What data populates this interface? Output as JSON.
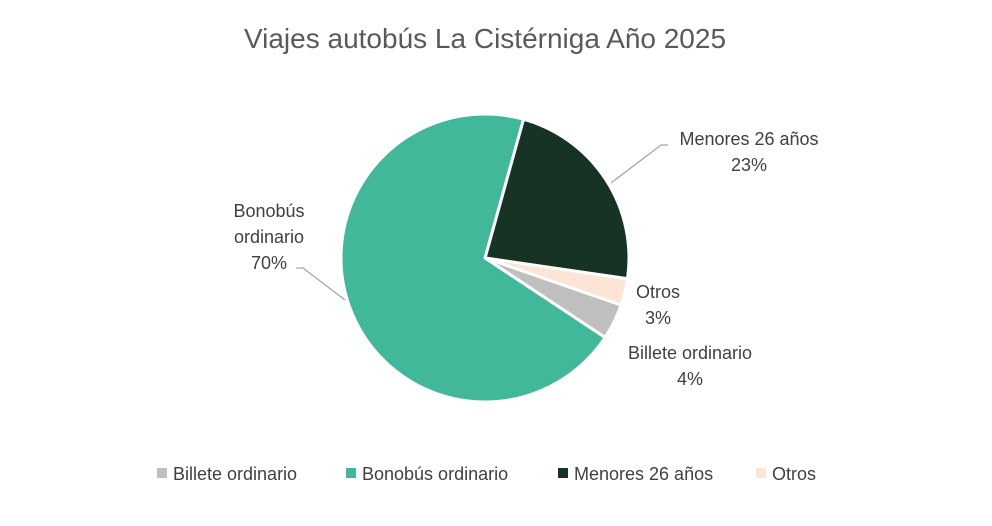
{
  "chart_data": {
    "type": "pie",
    "title": "Viajes autobús La Cistérniga Año 2025",
    "legend_position": "bottom",
    "slices": [
      {
        "key": "billete",
        "label": "Billete ordinario",
        "label_lines": [
          "Billete ordinario"
        ],
        "value": 4,
        "value_label": "4%",
        "color": "#BFBFBF"
      },
      {
        "key": "bonobus",
        "label": "Bonobús ordinario",
        "label_lines": [
          "Bonobús",
          "ordinario"
        ],
        "value": 70,
        "value_label": "70%",
        "color": "#41B899"
      },
      {
        "key": "menores",
        "label": "Menores 26 años",
        "label_lines": [
          "Menores 26 años"
        ],
        "value": 23,
        "value_label": "23%",
        "color": "#173324"
      },
      {
        "key": "otros",
        "label": "Otros",
        "label_lines": [
          "Otros"
        ],
        "value": 3,
        "value_label": "3%",
        "color": "#FCE4D6"
      }
    ]
  }
}
